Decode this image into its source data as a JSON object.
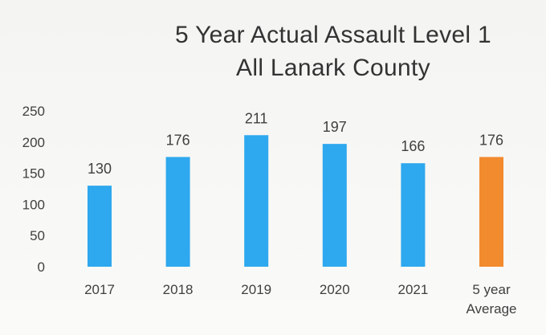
{
  "chart_data": {
    "type": "bar",
    "title_lines": [
      "5 Year Actual Assault Level 1",
      "All Lanark County"
    ],
    "categories": [
      [
        "2017"
      ],
      [
        "2018"
      ],
      [
        "2019"
      ],
      [
        "2020"
      ],
      [
        "2021"
      ],
      [
        "5 year",
        "Average"
      ]
    ],
    "values": [
      130,
      176,
      211,
      197,
      166,
      176
    ],
    "data_labels": [
      "130",
      "176",
      "211",
      "197",
      "166",
      "176"
    ],
    "bar_colors": [
      "#2ea8ee",
      "#2ea8ee",
      "#2ea8ee",
      "#2ea8ee",
      "#2ea8ee",
      "#f28a2e"
    ],
    "ylim": [
      0,
      250
    ],
    "yticks": [
      0,
      50,
      100,
      150,
      200,
      250
    ],
    "xlabel": "",
    "ylabel": "",
    "grid": false,
    "legend": "none"
  }
}
